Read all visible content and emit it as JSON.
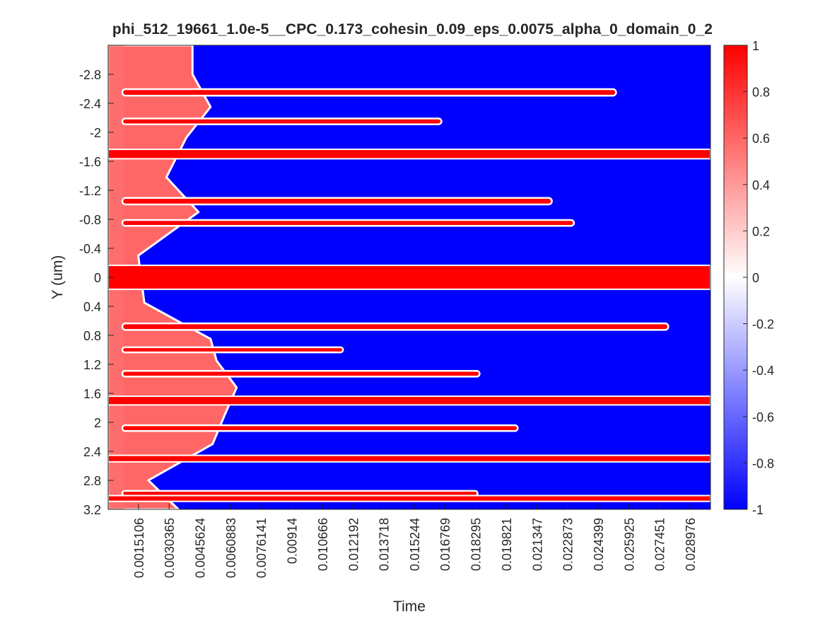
{
  "chart_data": {
    "type": "heatmap",
    "title": "phi_512_19661_1.0e-5__CPC_0.173_cohesin_0.09_eps_0.0075_alpha_0_domain_0_2",
    "xlabel": "Time",
    "ylabel": "Y (um)",
    "xlim": [
      0,
      0.03
    ],
    "ylim": [
      3.2,
      -3.2
    ],
    "y_axis_direction": "reversed (negative at top)",
    "x_tick_labels": [
      "0.0015106",
      "0.0030365",
      "0.0045624",
      "0.0060883",
      "0.0076141",
      "0.00914",
      "0.010666",
      "0.012192",
      "0.013718",
      "0.015244",
      "0.016769",
      "0.018295",
      "0.019821",
      "0.021347",
      "0.022873",
      "0.024399",
      "0.025925",
      "0.027451",
      "0.028976"
    ],
    "y_tick_labels": [
      "-2.8",
      "-2.4",
      "-2",
      "-1.6",
      "-1.2",
      "-0.8",
      "-0.4",
      "0",
      "0.4",
      "0.8",
      "1.2",
      "1.6",
      "2",
      "2.4",
      "2.8",
      "3.2"
    ],
    "colormap": {
      "name": "blue-white-red",
      "low_color": "#0000ff",
      "mid_color": "#ffffff",
      "high_color": "#ff0000",
      "clim": [
        -1,
        1
      ]
    },
    "colorbar_tick_labels": [
      "1",
      "0.8",
      "0.6",
      "0.4",
      "0.2",
      "0",
      "-0.2",
      "-0.4",
      "-0.6",
      "-0.8",
      "-1"
    ],
    "phases": {
      "background_value": -1,
      "persistent_bands_value": 1,
      "early_mixed_value": 0.6,
      "persistent_red_bands": [
        {
          "y_center": 3.05,
          "width": 0.08
        },
        {
          "y_center": -1.7,
          "width": 0.13
        },
        {
          "y_center": 0.0,
          "width": 0.33
        },
        {
          "y_center": 1.7,
          "width": 0.12
        },
        {
          "y_center": 2.5,
          "width": 0.09
        }
      ],
      "transient_red_bands": [
        {
          "y_center": -2.55,
          "width": 0.09,
          "end_time": 0.0253
        },
        {
          "y_center": -2.15,
          "width": 0.08,
          "end_time": 0.0166
        },
        {
          "y_center": -1.05,
          "width": 0.09,
          "end_time": 0.0221
        },
        {
          "y_center": -0.75,
          "width": 0.08,
          "end_time": 0.0232
        },
        {
          "y_center": 0.68,
          "width": 0.09,
          "end_time": 0.0279
        },
        {
          "y_center": 1.0,
          "width": 0.07,
          "end_time": 0.0117
        },
        {
          "y_center": 1.33,
          "width": 0.08,
          "end_time": 0.0185
        },
        {
          "y_center": 2.08,
          "width": 0.08,
          "end_time": 0.0204
        },
        {
          "y_center": 2.98,
          "width": 0.07,
          "end_time": 0.0184
        }
      ],
      "blue_domain_start_times": [
        {
          "y_center": -2.8,
          "start_time": 0.0042
        },
        {
          "y_center": -2.35,
          "start_time": 0.0051
        },
        {
          "y_center": -1.93,
          "start_time": 0.0039
        },
        {
          "y_center": -1.38,
          "start_time": 0.0029
        },
        {
          "y_center": -0.9,
          "start_time": 0.0045
        },
        {
          "y_center": -0.3,
          "start_time": 0.0015
        },
        {
          "y_center": 0.35,
          "start_time": 0.0018
        },
        {
          "y_center": 0.85,
          "start_time": 0.0051
        },
        {
          "y_center": 1.15,
          "start_time": 0.0054
        },
        {
          "y_center": 1.52,
          "start_time": 0.0064
        },
        {
          "y_center": 1.9,
          "start_time": 0.0058
        },
        {
          "y_center": 2.3,
          "start_time": 0.0052
        },
        {
          "y_center": 2.8,
          "start_time": 0.002
        },
        {
          "y_center": 3.2,
          "start_time": 0.0035
        }
      ]
    }
  }
}
